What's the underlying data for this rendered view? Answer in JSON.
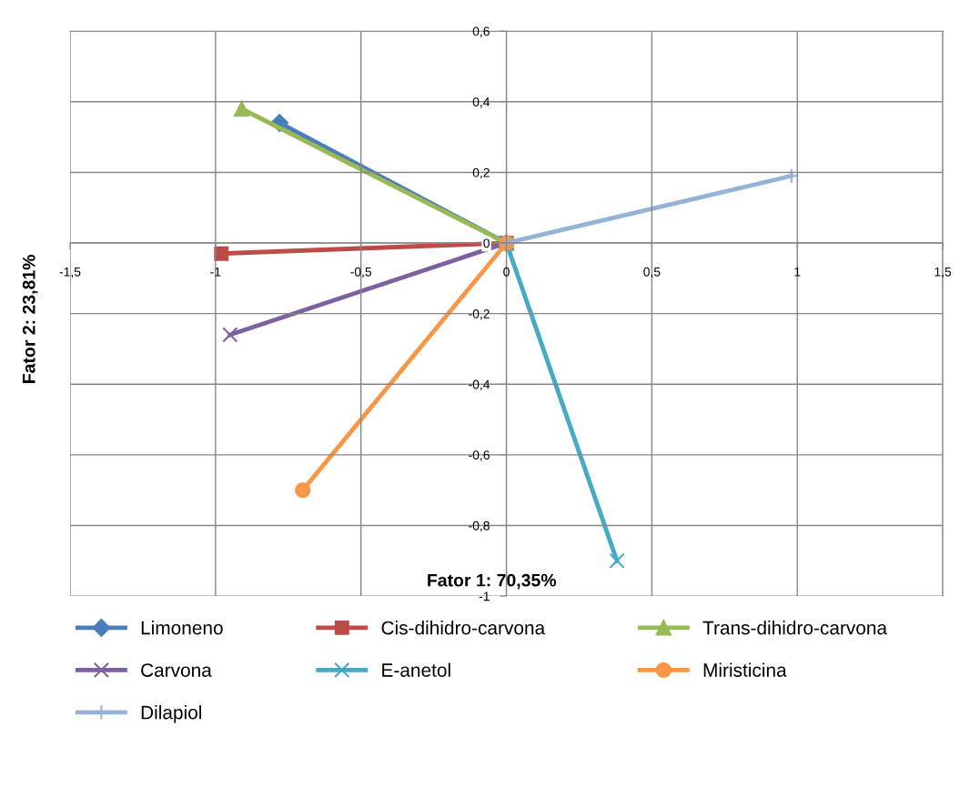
{
  "chart_data": {
    "type": "line",
    "xlabel": "Fator 1: 70,35%",
    "ylabel": "Fator 2: 23,81%",
    "xlim": [
      -1.5,
      1.5
    ],
    "ylim": [
      -1,
      0.6
    ],
    "xticks": [
      {
        "value": -1.5,
        "label": "-1,5"
      },
      -1,
      {
        "value": -0.5,
        "label": "-0,5"
      },
      0,
      {
        "value": 0.5,
        "label": "0,5"
      },
      1,
      {
        "value": 1.5,
        "label": "1,5"
      }
    ],
    "yticks": [
      -1,
      {
        "value": -0.8,
        "label": "-0,8"
      },
      {
        "value": -0.6,
        "label": "-0,6"
      },
      {
        "value": -0.4,
        "label": "-0,4"
      },
      {
        "value": -0.2,
        "label": "-0,2"
      },
      0,
      {
        "value": 0.2,
        "label": "0,2"
      },
      {
        "value": 0.4,
        "label": "0,4"
      },
      {
        "value": 0.6,
        "label": "0,6"
      }
    ],
    "grid": true,
    "legend": "bottom",
    "series": [
      {
        "name": "Limoneno",
        "color": "#4a7ebb",
        "marker": "diamond",
        "x": [
          0,
          -0.78
        ],
        "values": [
          0,
          0.34
        ]
      },
      {
        "name": "Cis-dihidro-carvona",
        "color": "#be4b48",
        "marker": "square",
        "x": [
          0,
          -0.98
        ],
        "values": [
          0,
          -0.03
        ]
      },
      {
        "name": "Trans-dihidro-carvona",
        "color": "#98b954",
        "marker": "triangle",
        "x": [
          0,
          -0.91
        ],
        "values": [
          0,
          0.38
        ]
      },
      {
        "name": "Carvona",
        "color": "#7d60a0",
        "marker": "cross",
        "x": [
          0,
          -0.95
        ],
        "values": [
          0,
          -0.26
        ]
      },
      {
        "name": "E-anetol",
        "color": "#46aac5",
        "marker": "cross",
        "x": [
          0,
          0.38
        ],
        "values": [
          0,
          -0.9
        ]
      },
      {
        "name": "Miristicina",
        "color": "#f79646",
        "marker": "circle",
        "x": [
          0,
          -0.7
        ],
        "values": [
          0,
          -0.7
        ]
      },
      {
        "name": "Dilapiol",
        "color": "#95b3d7",
        "marker": "plus",
        "x": [
          0,
          0.98
        ],
        "values": [
          0,
          0.19
        ]
      }
    ]
  }
}
